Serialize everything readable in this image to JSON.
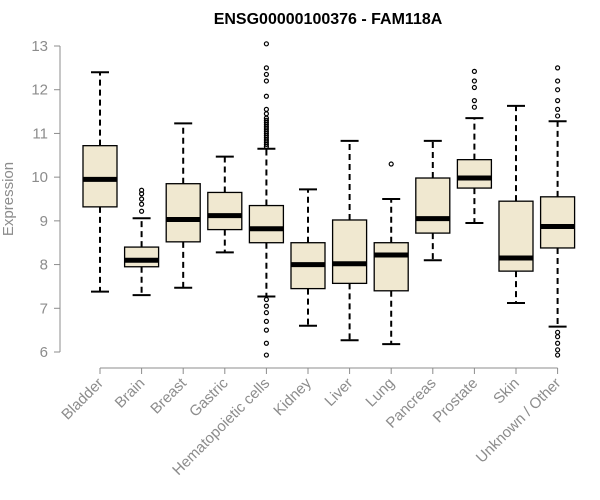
{
  "chart_data": {
    "type": "boxplot",
    "title": "ENSG00000100376 - FAM118A",
    "ylabel": "Expression",
    "xlabel": "",
    "ylim": [
      6,
      13
    ],
    "yticks": [
      6,
      7,
      8,
      9,
      10,
      11,
      12,
      13
    ],
    "box_fill": "#f0e8d0",
    "categories": [
      "Bladder",
      "Brain",
      "Breast",
      "Gastric",
      "Hematopoietic cells",
      "Kidney",
      "Liver",
      "Lung",
      "Pancreas",
      "Prostate",
      "Skin",
      "Unknown / Other"
    ],
    "boxes": [
      {
        "category": "Bladder",
        "whisker_low": 7.38,
        "q1": 9.32,
        "median": 9.95,
        "q3": 10.72,
        "whisker_high": 12.4,
        "outliers": []
      },
      {
        "category": "Brain",
        "whisker_low": 7.3,
        "q1": 7.95,
        "median": 8.1,
        "q3": 8.4,
        "whisker_high": 9.06,
        "outliers": [
          9.22,
          9.38,
          9.5,
          9.62,
          9.7
        ]
      },
      {
        "category": "Breast",
        "whisker_low": 7.47,
        "q1": 8.52,
        "median": 9.03,
        "q3": 9.85,
        "whisker_high": 11.23,
        "outliers": []
      },
      {
        "category": "Gastric",
        "whisker_low": 8.28,
        "q1": 8.8,
        "median": 9.12,
        "q3": 9.65,
        "whisker_high": 10.47,
        "outliers": []
      },
      {
        "category": "Hematopoietic cells",
        "whisker_low": 7.27,
        "q1": 8.5,
        "median": 8.82,
        "q3": 9.35,
        "whisker_high": 10.65,
        "outliers": [
          5.93,
          6.2,
          6.5,
          6.7,
          6.9,
          7.05,
          7.2,
          10.7,
          10.75,
          10.8,
          10.85,
          10.9,
          10.95,
          11.0,
          11.05,
          11.1,
          11.15,
          11.2,
          11.25,
          11.3,
          11.35,
          11.45,
          11.55,
          11.85,
          12.2,
          12.35,
          12.5,
          13.05
        ]
      },
      {
        "category": "Kidney",
        "whisker_low": 6.6,
        "q1": 7.45,
        "median": 8.0,
        "q3": 8.5,
        "whisker_high": 9.72,
        "outliers": []
      },
      {
        "category": "Liver",
        "whisker_low": 6.27,
        "q1": 7.57,
        "median": 8.02,
        "q3": 9.02,
        "whisker_high": 10.83,
        "outliers": []
      },
      {
        "category": "Lung",
        "whisker_low": 6.18,
        "q1": 7.4,
        "median": 8.22,
        "q3": 8.5,
        "whisker_high": 9.5,
        "outliers": [
          10.3
        ]
      },
      {
        "category": "Pancreas",
        "whisker_low": 8.1,
        "q1": 8.72,
        "median": 9.05,
        "q3": 9.98,
        "whisker_high": 10.83,
        "outliers": []
      },
      {
        "category": "Prostate",
        "whisker_low": 8.95,
        "q1": 9.75,
        "median": 9.98,
        "q3": 10.4,
        "whisker_high": 11.35,
        "outliers": [
          11.6,
          11.75,
          12.05,
          12.2,
          12.42
        ]
      },
      {
        "category": "Skin",
        "whisker_low": 7.12,
        "q1": 7.85,
        "median": 8.15,
        "q3": 9.45,
        "whisker_high": 11.63,
        "outliers": []
      },
      {
        "category": "Unknown / Other",
        "whisker_low": 6.58,
        "q1": 8.38,
        "median": 8.87,
        "q3": 9.55,
        "whisker_high": 11.28,
        "outliers": [
          5.93,
          6.05,
          6.2,
          6.35,
          6.45,
          11.4,
          11.55,
          11.75,
          12.0,
          12.2,
          12.5
        ]
      }
    ]
  }
}
